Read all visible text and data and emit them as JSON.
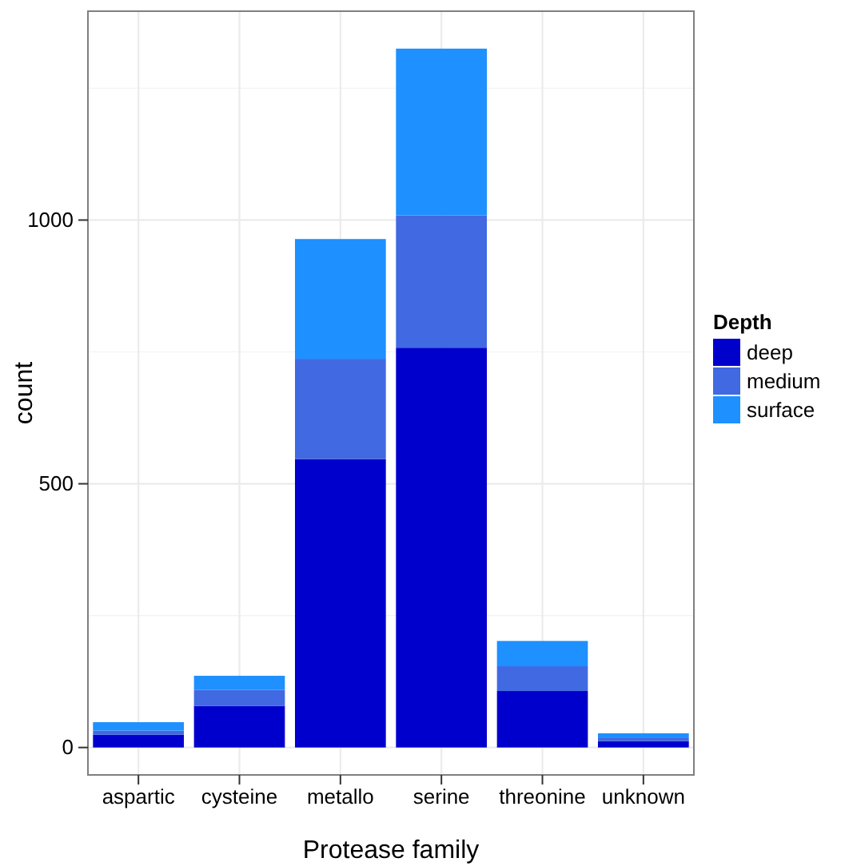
{
  "chart_data": {
    "type": "bar",
    "stacked": true,
    "xlabel": "Protease family",
    "ylabel": "count",
    "legend_title": "Depth",
    "legend": "right",
    "categories": [
      "aspartic",
      "cysteine",
      "metallo",
      "serine",
      "threonine",
      "unknown"
    ],
    "series": [
      {
        "name": "deep",
        "color": "#0000cd",
        "values": [
          24,
          79,
          547,
          758,
          107,
          12
        ]
      },
      {
        "name": "medium",
        "color": "#4169e1",
        "values": [
          8,
          30,
          190,
          251,
          47,
          7
        ]
      },
      {
        "name": "surface",
        "color": "#1e90ff",
        "values": [
          16,
          27,
          227,
          316,
          48,
          8
        ]
      }
    ],
    "ylim": [
      -52,
      1396
    ],
    "yticks": [
      0,
      500,
      1000
    ],
    "grid": true
  }
}
